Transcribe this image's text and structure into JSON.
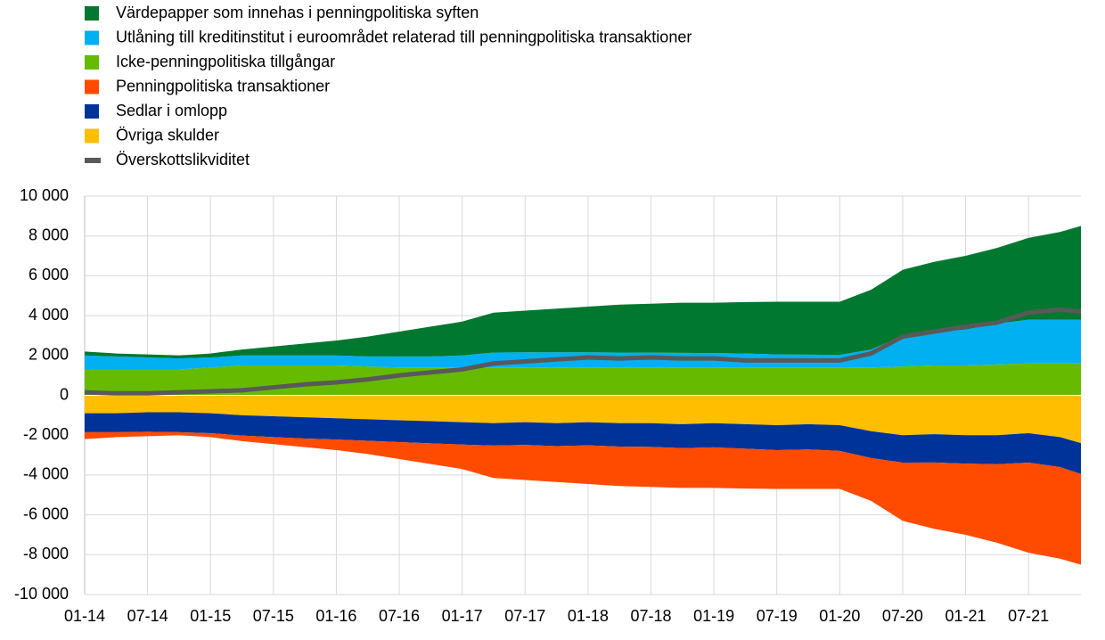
{
  "chart_data": {
    "type": "area",
    "x": [
      "01-14",
      "04-14",
      "07-14",
      "10-14",
      "01-15",
      "04-15",
      "07-15",
      "10-15",
      "01-16",
      "04-16",
      "07-16",
      "10-16",
      "01-17",
      "04-17",
      "07-17",
      "10-17",
      "01-18",
      "04-18",
      "07-18",
      "10-18",
      "01-19",
      "04-19",
      "07-19",
      "10-19",
      "01-20",
      "04-20",
      "07-20",
      "10-20",
      "01-21",
      "04-21",
      "07-21",
      "10-21",
      "12-21"
    ],
    "xlim": [
      "01-14",
      "12-21"
    ],
    "xticks": [
      "01-14",
      "07-14",
      "01-15",
      "07-15",
      "01-16",
      "07-16",
      "01-17",
      "07-17",
      "01-18",
      "07-18",
      "01-19",
      "07-19",
      "01-20",
      "07-20",
      "01-21",
      "07-21"
    ],
    "ylim": [
      -10000,
      10000
    ],
    "yticks": [
      {
        "value": -10000,
        "label": "-10 000"
      },
      {
        "value": -8000,
        "label": "-8 000"
      },
      {
        "value": -6000,
        "label": "-6 000"
      },
      {
        "value": -4000,
        "label": "-4 000"
      },
      {
        "value": -2000,
        "label": "-2 000"
      },
      0,
      {
        "value": 2000,
        "label": "2 000"
      },
      {
        "value": 4000,
        "label": "4 000"
      },
      {
        "value": 6000,
        "label": "6 000"
      },
      {
        "value": 8000,
        "label": "8 000"
      },
      {
        "value": 10000,
        "label": "10 000"
      }
    ],
    "grid": true,
    "series": [
      {
        "name": "Värdepapper som innehas i penningpolitiska syften",
        "type": "area",
        "color": "#00782f",
        "values": [
          200,
          150,
          150,
          150,
          200,
          300,
          450,
          600,
          750,
          1000,
          1250,
          1500,
          1700,
          2000,
          2090,
          2190,
          2290,
          2400,
          2460,
          2520,
          2530,
          2580,
          2650,
          2660,
          2670,
          3000,
          3300,
          3500,
          3700,
          3800,
          4100,
          4400,
          4700
        ]
      },
      {
        "name": "Utlåning till kreditinstitut i euroområdet relaterad till penningpolitiska transaktioner",
        "type": "area",
        "color": "#00b0f0",
        "values": [
          700,
          650,
          600,
          550,
          500,
          500,
          500,
          500,
          500,
          500,
          550,
          550,
          600,
          750,
          760,
          760,
          760,
          750,
          740,
          730,
          720,
          700,
          650,
          640,
          630,
          900,
          1550,
          1700,
          1800,
          2050,
          2200,
          2200,
          2200
        ]
      },
      {
        "name": "Icke-penningpolitiska tillgångar",
        "type": "area",
        "color": "#66bb00",
        "values": [
          1300,
          1300,
          1300,
          1300,
          1400,
          1500,
          1500,
          1500,
          1500,
          1450,
          1400,
          1400,
          1400,
          1400,
          1400,
          1400,
          1400,
          1400,
          1400,
          1400,
          1400,
          1400,
          1400,
          1400,
          1400,
          1400,
          1450,
          1500,
          1500,
          1550,
          1600,
          1600,
          1600
        ]
      },
      {
        "name": "Penningpolitiska transaktioner",
        "type": "area",
        "color": "#ff4b00",
        "values": [
          -350,
          -250,
          -220,
          -150,
          -200,
          -280,
          -350,
          -430,
          -530,
          -670,
          -850,
          -1040,
          -1230,
          -1630,
          -1760,
          -1800,
          -1940,
          -1980,
          -2010,
          -2000,
          -2040,
          -2000,
          -1950,
          -1980,
          -1910,
          -2150,
          -2920,
          -3330,
          -3570,
          -3940,
          -4520,
          -4600,
          -4550
        ]
      },
      {
        "name": "Sedlar i omlopp",
        "type": "area",
        "color": "#003399",
        "values": [
          -950,
          -950,
          -980,
          -1000,
          -1000,
          -1020,
          -1050,
          -1070,
          -1070,
          -1080,
          -1100,
          -1110,
          -1120,
          -1120,
          -1140,
          -1150,
          -1160,
          -1170,
          -1190,
          -1200,
          -1210,
          -1230,
          -1250,
          -1270,
          -1290,
          -1350,
          -1380,
          -1420,
          -1430,
          -1460,
          -1480,
          -1500,
          -1550
        ]
      },
      {
        "name": "Övriga skulder",
        "type": "area",
        "color": "#ffbf00",
        "values": [
          -900,
          -900,
          -850,
          -850,
          -900,
          -1000,
          -1050,
          -1100,
          -1150,
          -1200,
          -1250,
          -1300,
          -1350,
          -1400,
          -1350,
          -1400,
          -1350,
          -1400,
          -1400,
          -1450,
          -1400,
          -1450,
          -1500,
          -1450,
          -1500,
          -1800,
          -2000,
          -1950,
          -2000,
          -2000,
          -1900,
          -2100,
          -2400
        ]
      },
      {
        "name": "Överskottslikviditet",
        "type": "line",
        "color": "#595959",
        "values": [
          150,
          100,
          100,
          150,
          200,
          250,
          400,
          550,
          650,
          800,
          1000,
          1150,
          1300,
          1600,
          1700,
          1800,
          1900,
          1850,
          1900,
          1850,
          1850,
          1750,
          1750,
          1750,
          1750,
          2100,
          2950,
          3200,
          3450,
          3650,
          4150,
          4300,
          4200
        ]
      }
    ]
  }
}
